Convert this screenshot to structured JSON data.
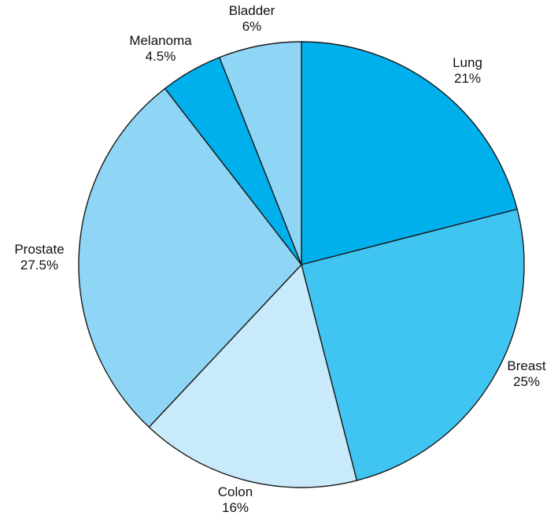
{
  "chart_data": {
    "type": "pie",
    "start_angle_deg": 0,
    "direction": "clockwise",
    "slices": [
      {
        "label": "Lung",
        "value_label": "21%",
        "value": 21,
        "color": "#00b0ec"
      },
      {
        "label": "Breast",
        "value_label": "25%",
        "value": 25,
        "color": "#40c5f2"
      },
      {
        "label": "Colon",
        "value_label": "16%",
        "value": 16,
        "color": "#c8eafa"
      },
      {
        "label": "Prostate",
        "value_label": "27.5%",
        "value": 27.5,
        "color": "#8fd6f6"
      },
      {
        "label": "Melanoma",
        "value_label": "4.5%",
        "value": 4.5,
        "color": "#00b0ec"
      },
      {
        "label": "Bladder",
        "value_label": "6%",
        "value": 6,
        "color": "#8fd6f6"
      }
    ]
  }
}
